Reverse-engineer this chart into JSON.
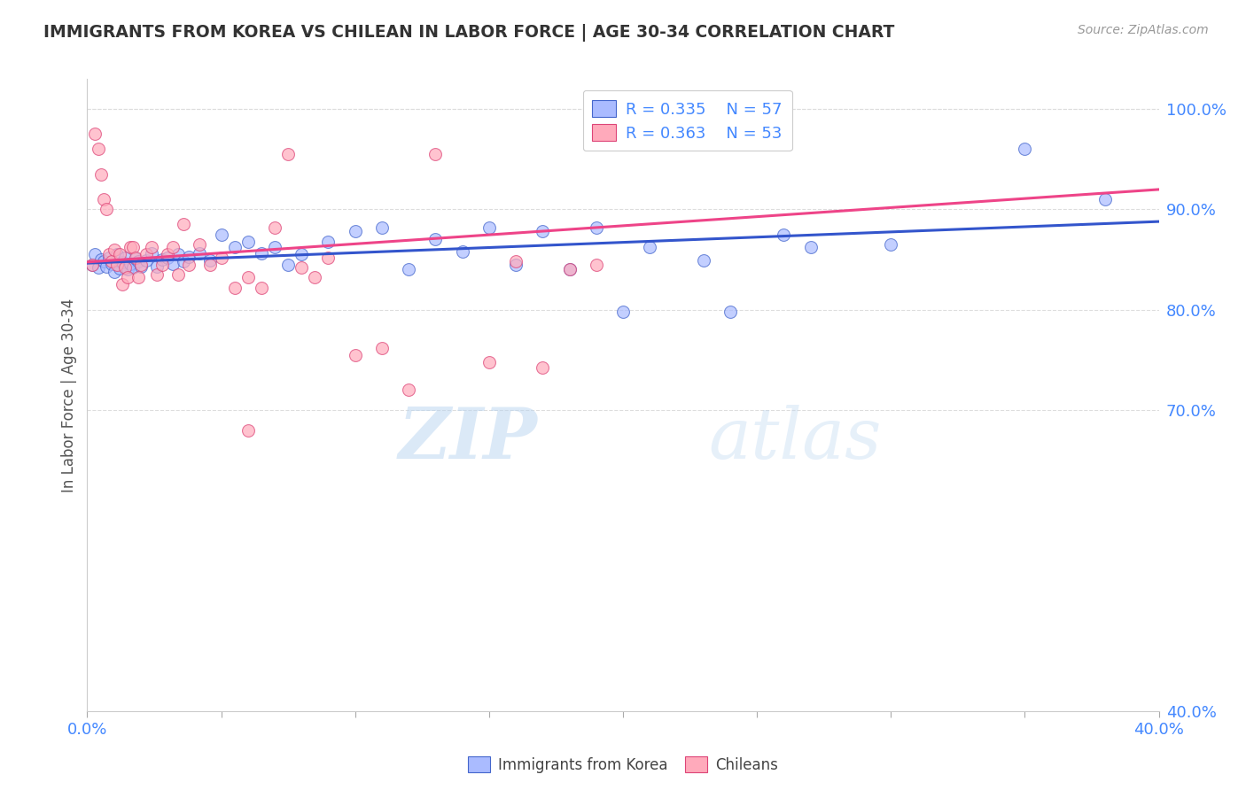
{
  "title": "IMMIGRANTS FROM KOREA VS CHILEAN IN LABOR FORCE | AGE 30-34 CORRELATION CHART",
  "source": "Source: ZipAtlas.com",
  "ylabel": "In Labor Force | Age 30-34",
  "legend_blue_r": "0.335",
  "legend_blue_n": "57",
  "legend_pink_r": "0.363",
  "legend_pink_n": "53",
  "legend_label_blue": "Immigrants from Korea",
  "legend_label_pink": "Chileans",
  "watermark_zip": "ZIP",
  "watermark_atlas": "atlas",
  "background_color": "#ffffff",
  "blue_fill": "#aabbff",
  "blue_edge": "#4466cc",
  "pink_fill": "#ffaabb",
  "pink_edge": "#dd4477",
  "trendline_blue": "#3355cc",
  "trendline_pink": "#ee4488",
  "title_color": "#333333",
  "axis_label_color": "#4488ff",
  "ylabel_color": "#555555",
  "grid_color": "#dddddd",
  "x_min": 0.0,
  "x_max": 0.4,
  "y_min": 0.4,
  "y_max": 1.03,
  "blue_x": [
    0.002,
    0.003,
    0.004,
    0.005,
    0.006,
    0.007,
    0.008,
    0.009,
    0.01,
    0.011,
    0.012,
    0.013,
    0.014,
    0.015,
    0.016,
    0.017,
    0.018,
    0.019,
    0.02,
    0.022,
    0.024,
    0.026,
    0.028,
    0.03,
    0.032,
    0.034,
    0.036,
    0.038,
    0.042,
    0.046,
    0.05,
    0.055,
    0.06,
    0.065,
    0.07,
    0.075,
    0.08,
    0.09,
    0.1,
    0.11,
    0.13,
    0.15,
    0.17,
    0.19,
    0.2,
    0.23,
    0.27,
    0.35,
    0.38,
    0.12,
    0.14,
    0.16,
    0.18,
    0.21,
    0.24,
    0.26,
    0.3
  ],
  "blue_y": [
    0.845,
    0.855,
    0.842,
    0.85,
    0.848,
    0.843,
    0.852,
    0.846,
    0.838,
    0.855,
    0.841,
    0.847,
    0.852,
    0.84,
    0.846,
    0.842,
    0.851,
    0.848,
    0.843,
    0.849,
    0.856,
    0.843,
    0.85,
    0.852,
    0.846,
    0.855,
    0.848,
    0.853,
    0.856,
    0.849,
    0.875,
    0.862,
    0.868,
    0.856,
    0.862,
    0.845,
    0.855,
    0.868,
    0.878,
    0.882,
    0.87,
    0.882,
    0.878,
    0.882,
    0.798,
    0.849,
    0.862,
    0.96,
    0.91,
    0.84,
    0.858,
    0.845,
    0.84,
    0.862,
    0.798,
    0.875,
    0.865
  ],
  "pink_x": [
    0.002,
    0.003,
    0.004,
    0.005,
    0.006,
    0.007,
    0.008,
    0.009,
    0.01,
    0.011,
    0.012,
    0.013,
    0.014,
    0.015,
    0.016,
    0.017,
    0.018,
    0.019,
    0.02,
    0.022,
    0.024,
    0.026,
    0.028,
    0.03,
    0.032,
    0.034,
    0.036,
    0.038,
    0.042,
    0.046,
    0.05,
    0.055,
    0.06,
    0.065,
    0.07,
    0.075,
    0.08,
    0.085,
    0.09,
    0.1,
    0.11,
    0.12,
    0.13,
    0.17,
    0.2,
    0.21,
    0.22,
    0.23,
    0.15,
    0.16,
    0.18,
    0.19,
    0.06
  ],
  "pink_y": [
    0.845,
    0.975,
    0.96,
    0.935,
    0.91,
    0.9,
    0.855,
    0.848,
    0.86,
    0.845,
    0.855,
    0.825,
    0.842,
    0.832,
    0.862,
    0.862,
    0.852,
    0.832,
    0.845,
    0.855,
    0.862,
    0.835,
    0.845,
    0.855,
    0.862,
    0.835,
    0.885,
    0.845,
    0.865,
    0.845,
    0.852,
    0.822,
    0.832,
    0.822,
    0.882,
    0.955,
    0.842,
    0.832,
    0.852,
    0.755,
    0.762,
    0.72,
    0.955,
    0.742,
    1.005,
    1.01,
    1.01,
    1.0,
    0.748,
    0.848,
    0.84,
    0.845,
    0.68
  ]
}
